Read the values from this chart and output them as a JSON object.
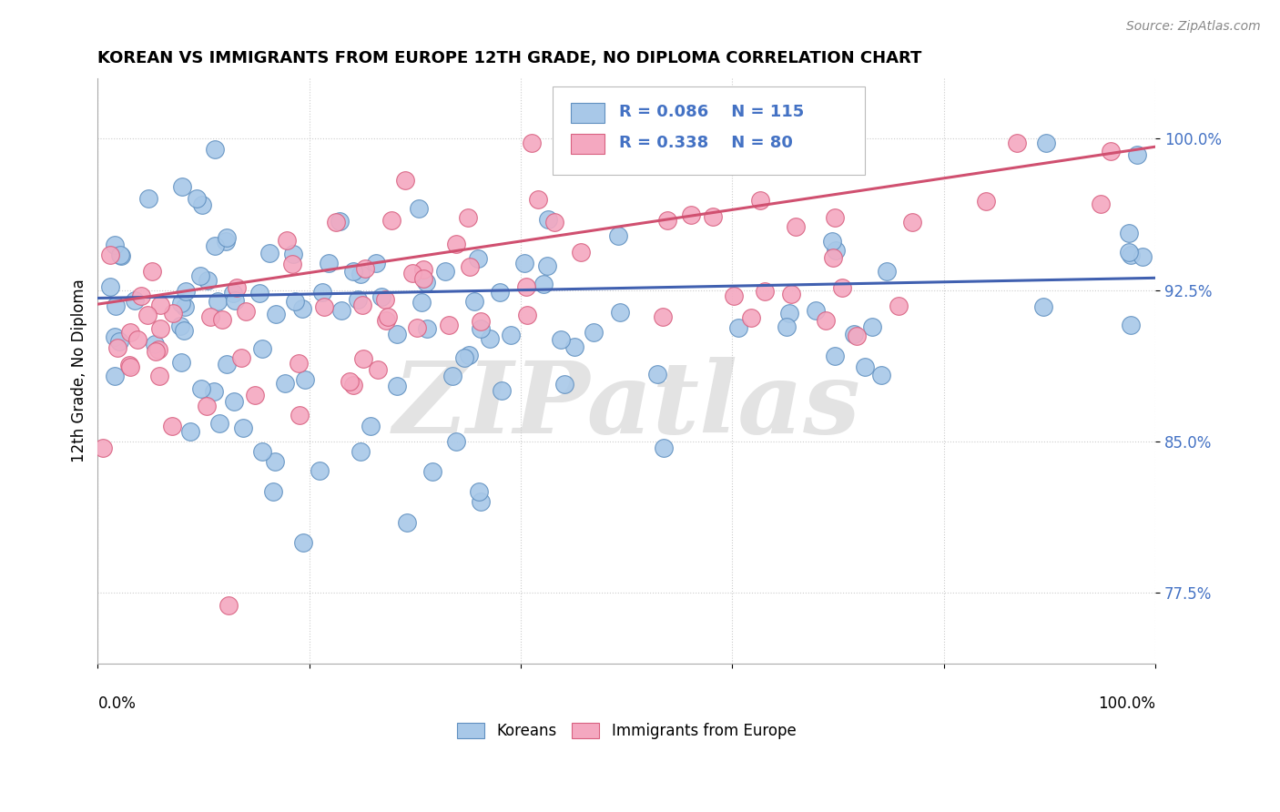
{
  "title": "KOREAN VS IMMIGRANTS FROM EUROPE 12TH GRADE, NO DIPLOMA CORRELATION CHART",
  "source": "Source: ZipAtlas.com",
  "ylabel": "12th Grade, No Diploma",
  "ytick_labels": [
    "77.5%",
    "85.0%",
    "92.5%",
    "100.0%"
  ],
  "ytick_values": [
    0.775,
    0.85,
    0.925,
    1.0
  ],
  "legend_label1": "Koreans",
  "legend_label2": "Immigrants from Europe",
  "r1": 0.086,
  "n1": 115,
  "r2": 0.338,
  "n2": 80,
  "color_blue": "#A8C8E8",
  "color_pink": "#F4A8C0",
  "color_blue_edge": "#6090C0",
  "color_pink_edge": "#D86080",
  "color_blue_line": "#4060B0",
  "color_pink_line": "#D05070",
  "color_legend_text": "#4472C4",
  "color_ytick": "#4472C4",
  "watermark": "ZIPatlas",
  "xlim": [
    0.0,
    1.0
  ],
  "ylim": [
    0.74,
    1.03
  ]
}
